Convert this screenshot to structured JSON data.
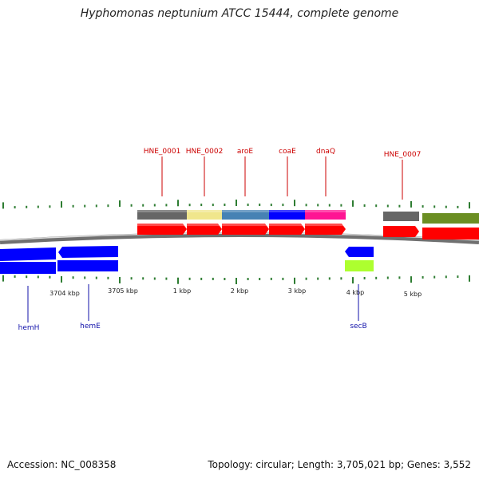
{
  "title": "Hyphomonas neptunium ATCC 15444, complete genome",
  "footer": {
    "accession": "Accession: NC_008358",
    "summary": "Topology: circular; Length: 3,705,021 bp; Genes: 3,552"
  },
  "ruler_labels": [
    "3704 kbp",
    "3705 kbp",
    "1 kbp",
    "2 kbp",
    "3 kbp",
    "4 kbp",
    "5 kbp"
  ],
  "forward_genes": [
    {
      "label": "HNE_0001",
      "feature_color": "#666666",
      "cds_color": "#ff0000"
    },
    {
      "label": "HNE_0002",
      "feature_color": "#f0e68c",
      "cds_color": "#ff0000"
    },
    {
      "label": "aroE",
      "feature_color": "#4682b4",
      "cds_color": "#ff0000"
    },
    {
      "label": "coaE",
      "feature_color": "#0000ff",
      "cds_color": "#ff0000"
    },
    {
      "label": "dnaQ",
      "feature_color": "#ff1493",
      "cds_color": "#ff0000"
    },
    {
      "label": "HNE_0007",
      "feature_color": "#666666",
      "cds_color": "#ff0000"
    },
    {
      "label": "",
      "feature_color": "#6b8e23",
      "cds_color": "#ff0000"
    }
  ],
  "reverse_genes": [
    {
      "label": "hemH",
      "cds_color": "#0000ff"
    },
    {
      "label": "hemE",
      "cds_color": "#0000ff"
    },
    {
      "label": "secB",
      "cds_color": "#0000ff",
      "feature_color": "#adff2f"
    }
  ]
}
